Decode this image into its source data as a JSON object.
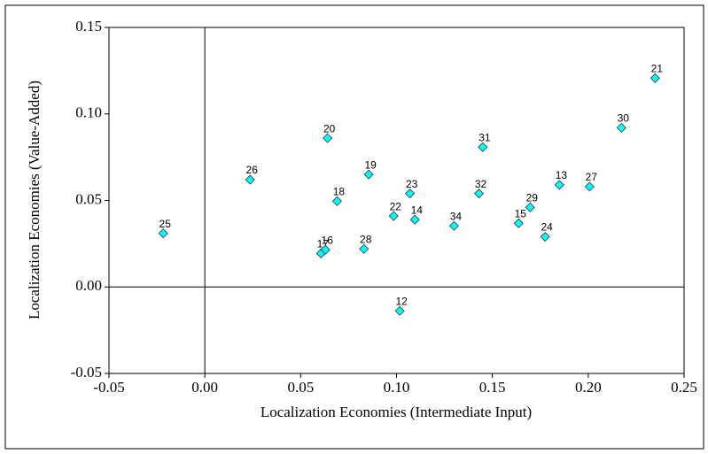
{
  "chart_data": {
    "type": "scatter",
    "xlabel": "Localization Economies (Intermediate Input)",
    "ylabel": "Localization Economies (Value-Added)",
    "x": [
      -0.0217,
      0.0236,
      0.064,
      0.0606,
      0.0629,
      0.069,
      0.0855,
      0.083,
      0.0985,
      0.107,
      0.1096,
      0.1017,
      0.13,
      0.145,
      0.143,
      0.1637,
      0.1697,
      0.1775,
      0.185,
      0.2007,
      0.2173,
      0.2349
    ],
    "values": [
      0.031,
      0.062,
      0.086,
      0.0194,
      0.0215,
      0.0496,
      0.065,
      0.022,
      0.041,
      0.054,
      0.0389,
      -0.0138,
      0.0353,
      0.0808,
      0.054,
      0.0368,
      0.046,
      0.029,
      0.059,
      0.058,
      0.092,
      0.1207
    ],
    "point_labels": [
      "25",
      "26",
      "20",
      "17",
      "16",
      "18",
      "19",
      "28",
      "22",
      "23",
      "14",
      "12",
      "34",
      "31",
      "32",
      "15",
      "29",
      "24",
      "13",
      "27",
      "30",
      "21"
    ],
    "color": "#00ffff",
    "xlim": [
      -0.05,
      0.25
    ],
    "ylim": [
      -0.05,
      0.15
    ],
    "xticks": [
      {
        "value": -0.05,
        "label": "-0.05"
      },
      {
        "value": 0,
        "label": "0.00"
      },
      {
        "value": 0.05,
        "label": "0.05"
      },
      {
        "value": 0.1,
        "label": "0.10"
      },
      {
        "value": 0.15,
        "label": "0.15"
      },
      {
        "value": 0.2,
        "label": "0.20"
      },
      {
        "value": 0.25,
        "label": "0.25"
      }
    ],
    "yticks": [
      {
        "value": -0.05,
        "label": "-0.05"
      },
      {
        "value": 0,
        "label": "0.00"
      },
      {
        "value": 0.05,
        "label": "0.05"
      },
      {
        "value": 0.1,
        "label": "0.10"
      },
      {
        "value": 0.15,
        "label": "0.15"
      }
    ]
  }
}
